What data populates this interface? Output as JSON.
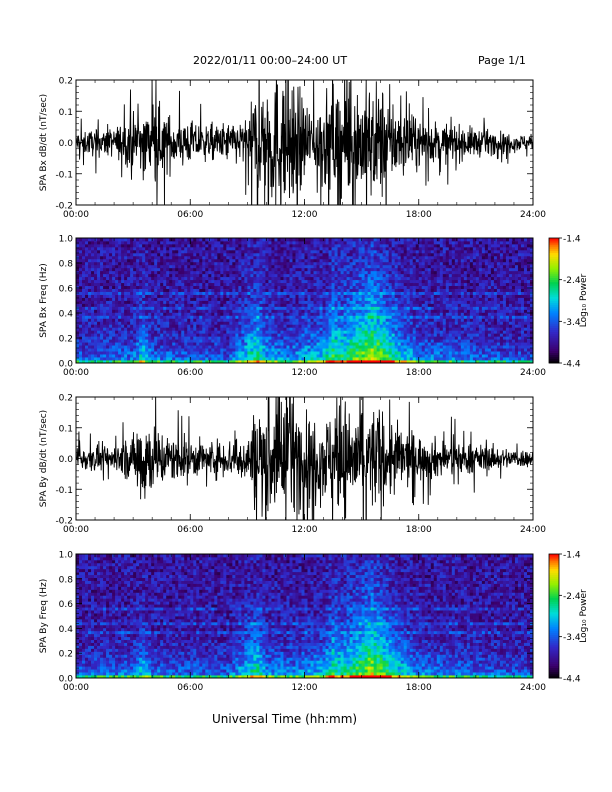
{
  "header": {
    "title": "2022/01/11  00:00–24:00 UT",
    "page": "Page 1/1"
  },
  "chart_data": [
    {
      "type": "line",
      "ylabel": "SPA Bx dB/dt (nT/sec)",
      "ylim": [
        -0.2,
        0.2
      ],
      "yticks": [
        "-0.2",
        "-0.1",
        "0.0",
        "0.1",
        "0.2"
      ],
      "yticks_values": [
        -0.2,
        -0.1,
        0.0,
        0.1,
        0.2
      ],
      "xlim": [
        "00:00",
        "24:00"
      ],
      "xticks": [
        "00:00",
        "06:00",
        "12:00",
        "18:00",
        "24:00"
      ],
      "amplitude_envelope": {
        "hours": [
          0,
          2,
          3,
          4,
          5,
          7,
          9,
          9.5,
          10,
          11,
          12,
          13,
          14,
          15,
          16,
          17,
          18,
          20,
          22,
          24
        ],
        "nT_per_sec": [
          0.04,
          0.05,
          0.09,
          0.14,
          0.09,
          0.06,
          0.08,
          0.2,
          0.25,
          0.25,
          0.15,
          0.16,
          0.22,
          0.2,
          0.2,
          0.12,
          0.08,
          0.06,
          0.04,
          0.025
        ]
      }
    },
    {
      "type": "heatmap",
      "ylabel": "SPA Bx Freq (Hz)",
      "ylim": [
        0.0,
        1.0
      ],
      "yticks": [
        "0.0",
        "0.2",
        "0.4",
        "0.6",
        "0.8",
        "1.0"
      ],
      "yticks_values": [
        0.0,
        0.2,
        0.4,
        0.6,
        0.8,
        1.0
      ],
      "xlim": [
        "00:00",
        "24:00"
      ],
      "xticks": [
        "00:00",
        "06:00",
        "12:00",
        "18:00",
        "24:00"
      ],
      "colorbar": {
        "label": "Log₁₀ Power",
        "ticks": [
          "-1.4",
          "-2.4",
          "-3.4",
          "-4.4"
        ],
        "range": [
          -4.4,
          -1.4
        ]
      },
      "activity_profile": {
        "hours": [
          0,
          3,
          3.5,
          4,
          8,
          9.5,
          10,
          11,
          12,
          13,
          13.5,
          14,
          15,
          15.5,
          16,
          17,
          18,
          20,
          22,
          24
        ],
        "relative": [
          0.3,
          0.35,
          0.6,
          0.35,
          0.3,
          0.75,
          0.5,
          0.4,
          0.5,
          0.55,
          0.8,
          0.7,
          0.9,
          1.0,
          0.9,
          0.6,
          0.4,
          0.35,
          0.3,
          0.25
        ]
      }
    },
    {
      "type": "line",
      "ylabel": "SPA By dB/dt (nT/sec)",
      "ylim": [
        -0.2,
        0.2
      ],
      "yticks": [
        "-0.2",
        "-0.1",
        "0.0",
        "0.1",
        "0.2"
      ],
      "yticks_values": [
        -0.2,
        -0.1,
        0.0,
        0.1,
        0.2
      ],
      "xlim": [
        "00:00",
        "24:00"
      ],
      "xticks": [
        "00:00",
        "06:00",
        "12:00",
        "18:00",
        "24:00"
      ],
      "amplitude_envelope": {
        "hours": [
          0,
          2,
          3,
          3.5,
          4,
          5,
          7,
          9,
          9.5,
          10,
          11,
          12,
          13,
          14,
          15,
          16,
          17,
          18,
          20,
          22,
          24
        ],
        "nT_per_sec": [
          0.04,
          0.05,
          0.08,
          0.2,
          0.12,
          0.08,
          0.06,
          0.08,
          0.2,
          0.22,
          0.25,
          0.16,
          0.15,
          0.2,
          0.2,
          0.18,
          0.12,
          0.08,
          0.06,
          0.04,
          0.03
        ]
      }
    },
    {
      "type": "heatmap",
      "ylabel": "SPA By Freq (Hz)",
      "ylim": [
        0.0,
        1.0
      ],
      "yticks": [
        "0.0",
        "0.2",
        "0.4",
        "0.6",
        "0.8",
        "1.0"
      ],
      "yticks_values": [
        0.0,
        0.2,
        0.4,
        0.6,
        0.8,
        1.0
      ],
      "xlim": [
        "00:00",
        "24:00"
      ],
      "xticks": [
        "00:00",
        "06:00",
        "12:00",
        "18:00",
        "24:00"
      ],
      "colorbar": {
        "label": "Log₁₀ Power",
        "ticks": [
          "-1.4",
          "-2.4",
          "-3.4",
          "-4.4"
        ],
        "range": [
          -4.4,
          -1.4
        ]
      },
      "activity_profile": {
        "hours": [
          0,
          3,
          3.5,
          4,
          8,
          9.5,
          10,
          11,
          12,
          13,
          13.5,
          14,
          15,
          15.5,
          16,
          17,
          18,
          20,
          22,
          24
        ],
        "relative": [
          0.3,
          0.35,
          0.55,
          0.35,
          0.3,
          0.7,
          0.45,
          0.4,
          0.45,
          0.5,
          0.75,
          0.65,
          0.85,
          1.0,
          0.85,
          0.6,
          0.4,
          0.35,
          0.3,
          0.25
        ]
      }
    }
  ],
  "footer": {
    "xlabel": "Universal Time (hh:mm)"
  }
}
